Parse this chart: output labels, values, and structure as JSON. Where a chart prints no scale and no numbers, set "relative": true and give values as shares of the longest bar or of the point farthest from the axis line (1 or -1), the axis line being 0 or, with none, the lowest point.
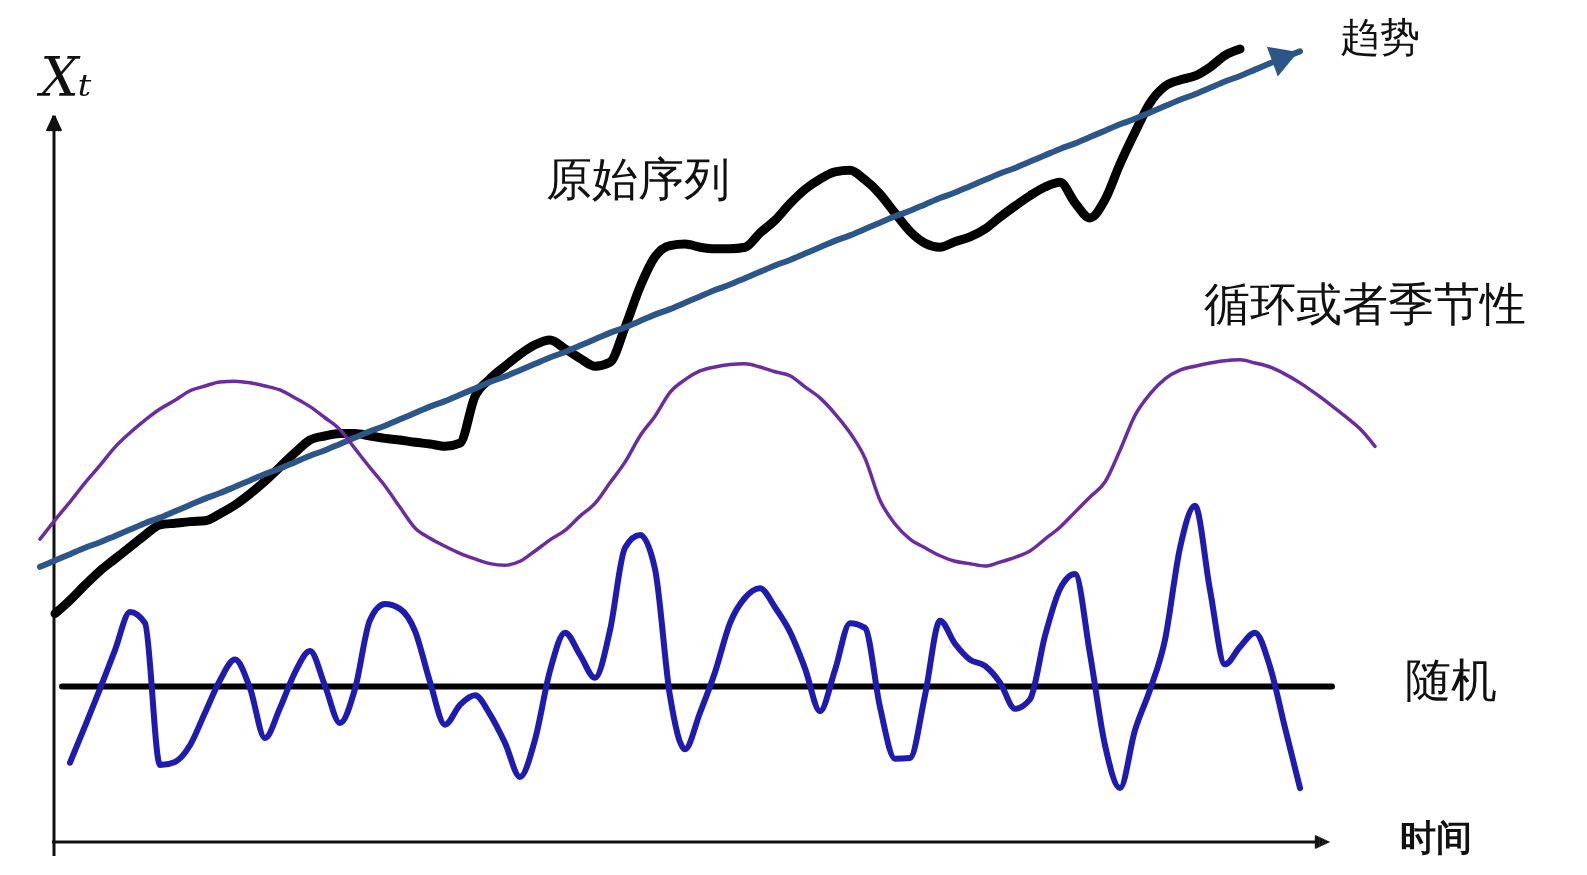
{
  "chart_data": {
    "type": "line",
    "relative": true,
    "xlabel": "时间",
    "ylabel": "Xₜ",
    "categories": [
      null,
      null,
      null,
      null,
      null,
      null,
      null,
      null,
      null,
      null,
      null,
      null,
      null,
      null,
      null,
      null,
      null,
      null,
      null,
      null,
      null,
      null,
      null,
      null,
      null,
      null,
      null,
      null,
      null,
      null,
      null,
      null,
      null,
      null,
      null,
      null,
      null,
      null,
      null,
      null,
      null,
      null,
      null,
      null,
      null,
      null,
      null,
      null,
      null,
      null,
      null,
      null,
      null,
      null,
      null,
      null,
      null,
      null,
      null,
      null,
      null,
      null,
      null,
      null,
      null,
      null,
      null,
      null,
      null,
      null,
      null,
      null,
      null,
      null,
      null,
      null,
      null,
      null,
      null,
      null,
      null,
      null,
      null,
      null,
      null,
      null,
      null,
      null,
      null,
      null
    ],
    "series": [
      {
        "name": "原始序列",
        "color": "#000000",
        "values": [
          null,
          0.288,
          0.305,
          0.324,
          0.342,
          0.357,
          0.372,
          0.387,
          0.4,
          0.402,
          0.404,
          0.405,
          0.414,
          0.425,
          0.439,
          0.455,
          0.473,
          0.491,
          0.507,
          0.512,
          0.515,
          0.515,
          0.512,
          0.509,
          0.507,
          0.504,
          0.502,
          0.499,
          0.503,
          0.562,
          0.584,
          0.6,
          0.615,
          0.627,
          0.633,
          0.622,
          0.61,
          0.6,
          0.605,
          0.649,
          0.7,
          0.738,
          0.752,
          0.754,
          0.75,
          0.748,
          0.748,
          0.75,
          0.768,
          0.784,
          0.805,
          0.823,
          0.836,
          0.845,
          0.847,
          0.835,
          0.817,
          0.793,
          0.77,
          0.755,
          0.75,
          0.757,
          0.763,
          0.773,
          0.788,
          0.802,
          0.815,
          0.826,
          0.832,
          0.806,
          0.787,
          0.81,
          0.855,
          0.895,
          0.932,
          0.953,
          0.961,
          0.966,
          0.977,
          0.992,
          1,
          null,
          null,
          null,
          null,
          null,
          null,
          null,
          null,
          null
        ]
      },
      {
        "name": "趋势",
        "color": "#2c5687",
        "values": [
          0.347,
          0.355,
          0.363,
          0.371,
          0.378,
          0.386,
          0.394,
          0.402,
          0.409,
          0.417,
          0.425,
          0.433,
          0.44,
          0.448,
          0.456,
          0.464,
          0.471,
          0.479,
          0.487,
          0.494,
          0.502,
          0.51,
          0.518,
          0.525,
          0.533,
          0.541,
          0.549,
          0.556,
          0.564,
          0.572,
          0.58,
          0.587,
          0.595,
          0.603,
          0.611,
          0.618,
          0.626,
          0.634,
          0.642,
          0.649,
          0.657,
          0.665,
          0.672,
          0.68,
          0.688,
          0.696,
          0.703,
          0.711,
          0.719,
          0.727,
          0.734,
          0.742,
          0.75,
          0.758,
          0.765,
          0.773,
          0.781,
          0.789,
          0.796,
          0.804,
          0.812,
          0.819,
          0.827,
          0.835,
          0.843,
          0.85,
          0.858,
          0.866,
          0.874,
          0.881,
          0.889,
          0.897,
          0.905,
          0.912,
          0.92,
          0.928,
          0.936,
          0.943,
          0.951,
          0.959,
          0.966,
          0.974,
          0.982,
          0.99,
          0.997,
          null,
          null,
          null,
          null,
          null
        ]
      },
      {
        "name": "循环或者季节性",
        "color": "#6a2c9f",
        "values": [
          0.382,
          0.406,
          0.429,
          0.453,
          0.475,
          0.498,
          0.516,
          0.532,
          0.546,
          0.557,
          0.569,
          0.575,
          0.58,
          0.581,
          0.579,
          0.575,
          0.57,
          0.56,
          0.549,
          0.535,
          0.52,
          0.496,
          0.472,
          0.449,
          0.422,
          0.396,
          0.383,
          0.373,
          0.364,
          0.357,
          0.351,
          0.349,
          0.354,
          0.367,
          0.381,
          0.393,
          0.411,
          0.427,
          0.453,
          0.479,
          0.512,
          0.537,
          0.567,
          0.583,
          0.594,
          0.599,
          0.602,
          0.603,
          0.599,
          0.593,
          0.588,
          0.574,
          0.56,
          0.54,
          0.516,
          0.484,
          0.431,
          0.401,
          0.382,
          0.371,
          0.361,
          0.354,
          0.351,
          0.348,
          0.353,
          0.359,
          0.367,
          0.382,
          0.397,
          0.416,
          0.435,
          0.454,
          0.494,
          0.538,
          0.565,
          0.584,
          0.595,
          0.6,
          0.604,
          0.607,
          0.608,
          0.604,
          0.599,
          0.59,
          0.579,
          0.566,
          0.552,
          0.537,
          0.521,
          0.499
        ]
      },
      {
        "name": "随机",
        "color": "#1f1ab0",
        "values": [
          null,
          null,
          0.1,
          0.146,
          0.193,
          0.242,
          0.29,
          0.276,
          0.097,
          0.101,
          0.122,
          0.163,
          0.204,
          0.23,
          0.194,
          0.131,
          0.169,
          0.214,
          0.241,
          0.197,
          0.15,
          0.193,
          0.28,
          0.3,
          0.294,
          0.266,
          0.202,
          0.148,
          0.173,
          0.185,
          0.161,
          0.125,
          0.082,
          0.129,
          0.216,
          0.264,
          0.236,
          0.207,
          0.267,
          0.371,
          0.387,
          0.344,
          0.184,
          0.117,
          0.163,
          0.214,
          0.276,
          0.308,
          0.32,
          0.296,
          0.265,
          0.219,
          0.165,
          0.217,
          0.276,
          0.27,
          0.17,
          0.105,
          0.106,
          0.185,
          0.279,
          0.25,
          0.23,
          0.222,
          0.201,
          0.168,
          0.18,
          0.26,
          0.319,
          0.338,
          0.237,
          0.122,
          0.068,
          0.141,
          0.192,
          0.255,
          0.371,
          0.424,
          0.318,
          0.224,
          0.246,
          0.264,
          0.221,
          0.144,
          0.068,
          null,
          null,
          null,
          null,
          null
        ]
      }
    ],
    "ref_lines": [
      {
        "axis": "y",
        "value": 0.196,
        "color": "#000000"
      }
    ]
  }
}
